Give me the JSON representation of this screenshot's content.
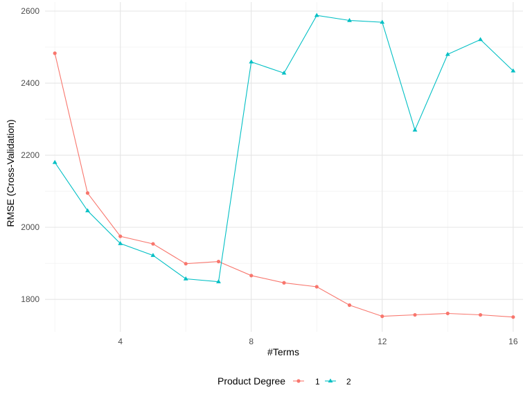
{
  "chart_data": {
    "type": "line",
    "title": "",
    "xlabel": "#Terms",
    "ylabel": "RMSE (Cross-Validation)",
    "xlim": [
      1.7,
      16.3
    ],
    "ylim": [
      1710,
      2625
    ],
    "x_ticks": [
      4,
      8,
      12,
      16
    ],
    "y_ticks": [
      1800,
      2000,
      2200,
      2400,
      2600
    ],
    "grid": true,
    "legend": {
      "title": "Product Degree",
      "position": "bottom"
    },
    "series": [
      {
        "name": "1",
        "color": "#F8766D",
        "marker": "circle",
        "x": [
          2,
          3,
          4,
          5,
          6,
          7,
          8,
          9,
          10,
          11,
          12,
          13,
          14,
          15,
          16
        ],
        "y": [
          2483,
          2095,
          1975,
          1954,
          1899,
          1905,
          1866,
          1846,
          1835,
          1784,
          1753,
          1757,
          1761,
          1757,
          1751
        ]
      },
      {
        "name": "2",
        "color": "#00BFC4",
        "marker": "triangle",
        "x": [
          2,
          3,
          4,
          5,
          6,
          7,
          8,
          9,
          10,
          11,
          12,
          13,
          14,
          15,
          16
        ],
        "y": [
          2180,
          2046,
          1955,
          1922,
          1857,
          1849,
          2459,
          2428,
          2588,
          2574,
          2569,
          2270,
          2480,
          2521,
          2434
        ]
      }
    ]
  }
}
